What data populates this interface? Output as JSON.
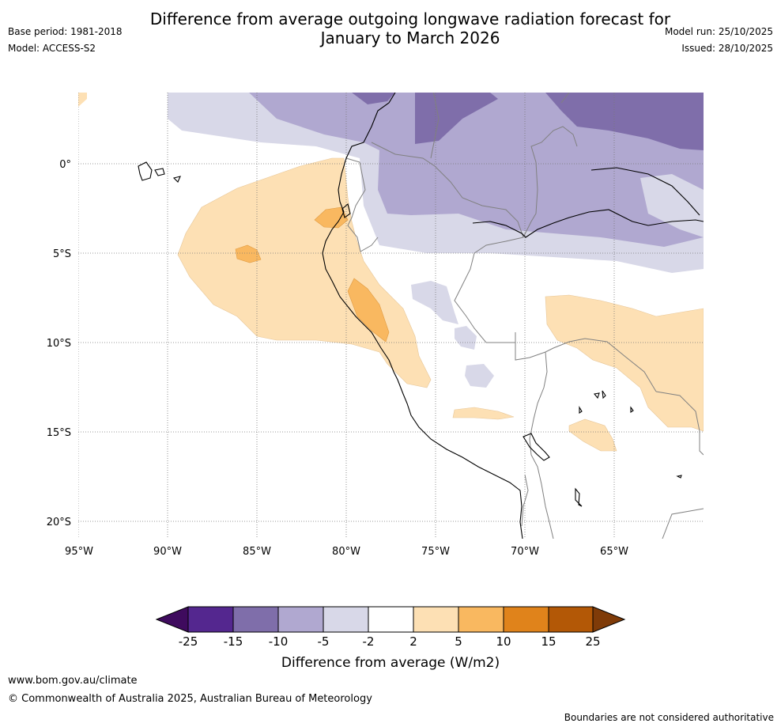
{
  "title_line1": "Difference from average outgoing longwave radiation forecast for",
  "title_line2": "January to March 2026",
  "base_period": "Base period: 1981-2018",
  "model": "Model: ACCESS-S2",
  "model_run": "Model run: 25/10/2025",
  "issued": "Issued: 28/10/2025",
  "lat_labels": [
    "0°",
    "5°S",
    "10°S",
    "15°S",
    "20°S"
  ],
  "lon_labels": [
    "95°W",
    "90°W",
    "85°W",
    "80°W",
    "75°W",
    "70°W",
    "65°W"
  ],
  "colorbar": {
    "ticks": [
      "-25",
      "-15",
      "-10",
      "-5",
      "-2",
      "2",
      "5",
      "10",
      "15",
      "25"
    ],
    "colors": [
      "#3f0b5e",
      "#54278f",
      "#7f6eaa",
      "#b0a8d0",
      "#d8d8e8",
      "#ffffff",
      "#fde0b4",
      "#f9b860",
      "#e0831b",
      "#b35806",
      "#7f3b08"
    ],
    "label": "Difference from average (W/m2)"
  },
  "footer": {
    "url": "www.bom.gov.au/climate",
    "copyright": "© Commonwealth of Australia 2025, Australian Bureau of Meteorology",
    "disclaimer": "Boundaries are not considered authoritative"
  }
}
